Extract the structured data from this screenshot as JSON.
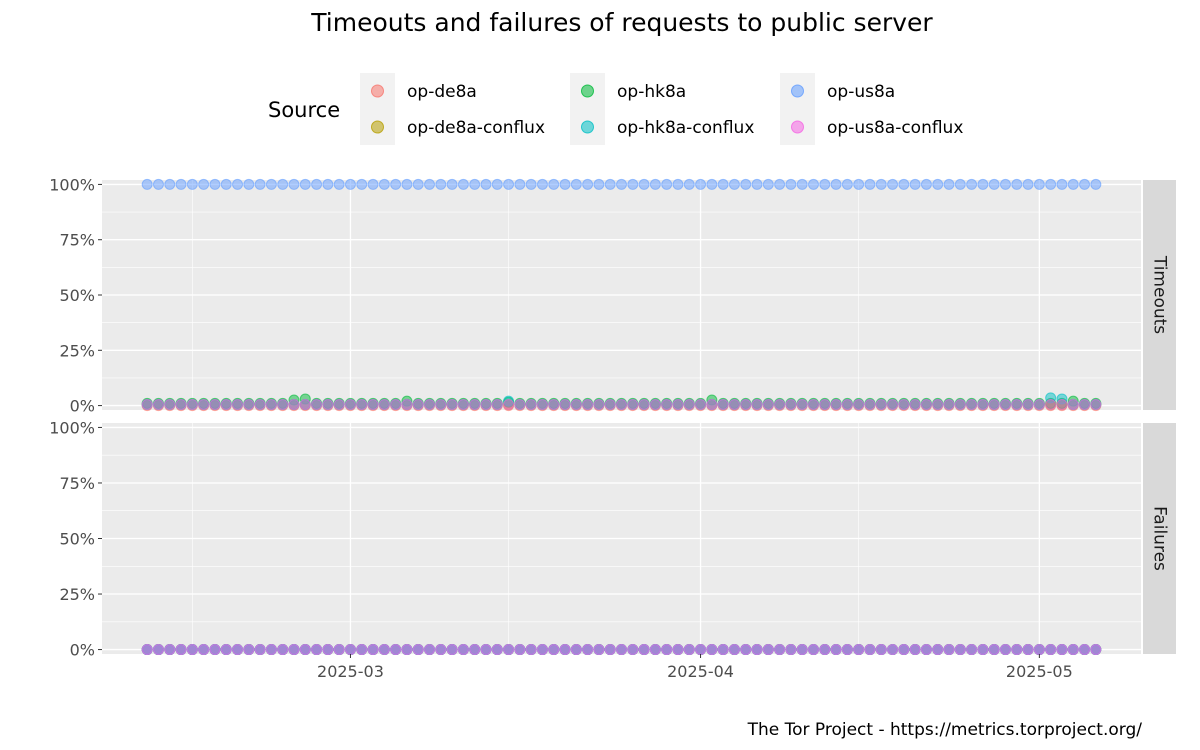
{
  "chart_data": {
    "type": "scatter",
    "title": "Timeouts and failures of requests to public server",
    "caption": "The Tor Project - https://metrics.torproject.org/",
    "legend": {
      "title": "Source",
      "position": "top"
    },
    "x_axis": {
      "type": "date",
      "range": [
        "2025-02-07",
        "2025-05-10"
      ],
      "ticks": [
        {
          "value": "2025-03-01",
          "label": "2025-03"
        },
        {
          "value": "2025-04-01",
          "label": "2025-04"
        },
        {
          "value": "2025-05-01",
          "label": "2025-05"
        }
      ],
      "minor_ticks": [
        "2025-02-15",
        "2025-03-15",
        "2025-04-15"
      ]
    },
    "y_axis": {
      "ylim": [
        -0.02,
        1.02
      ],
      "ticks": [
        {
          "value": 0,
          "label": "0%"
        },
        {
          "value": 0.25,
          "label": "25%"
        },
        {
          "value": 0.5,
          "label": "50%"
        },
        {
          "value": 0.75,
          "label": "75%"
        },
        {
          "value": 1,
          "label": "100%"
        }
      ],
      "minor_ticks": [
        0.125,
        0.375,
        0.625,
        0.875
      ]
    },
    "grid": true,
    "dates": {
      "start": "2025-02-11",
      "end": "2025-05-06"
    },
    "series": [
      {
        "name": "op-de8a",
        "color": "#F8766D"
      },
      {
        "name": "op-de8a-conflux",
        "color": "#B79F00"
      },
      {
        "name": "op-hk8a",
        "color": "#00BA38"
      },
      {
        "name": "op-hk8a-conflux",
        "color": "#00BFC4"
      },
      {
        "name": "op-us8a",
        "color": "#619CFF"
      },
      {
        "name": "op-us8a-conflux",
        "color": "#F564E3"
      }
    ],
    "facets": [
      {
        "label": "Timeouts",
        "values": {
          "op-de8a": {
            "default": 0.0,
            "overrides": {}
          },
          "op-de8a-conflux": {
            "default": 0.005,
            "overrides": {}
          },
          "op-hk8a": {
            "default": 0.01,
            "overrides": {
              "2025-02-24": 0.025,
              "2025-02-25": 0.03,
              "2025-03-06": 0.02,
              "2025-03-15": 0.015,
              "2025-04-02": 0.025,
              "2025-05-04": 0.02
            }
          },
          "op-hk8a-conflux": {
            "default": 0.005,
            "overrides": {
              "2025-03-15": 0.02,
              "2025-05-02": 0.035,
              "2025-05-03": 0.03
            }
          },
          "op-us8a": {
            "default": 1.0,
            "overrides": {}
          },
          "op-us8a-conflux": {
            "default": 0.005,
            "overrides": {}
          }
        }
      },
      {
        "label": "Failures",
        "values": {
          "op-de8a": {
            "default": 0,
            "overrides": {}
          },
          "op-de8a-conflux": {
            "default": 0,
            "overrides": {}
          },
          "op-hk8a": {
            "default": 0,
            "overrides": {}
          },
          "op-hk8a-conflux": {
            "default": 0,
            "overrides": {}
          },
          "op-us8a": {
            "default": 0,
            "overrides": {}
          },
          "op-us8a-conflux": {
            "default": 0,
            "overrides": {}
          }
        }
      }
    ]
  }
}
